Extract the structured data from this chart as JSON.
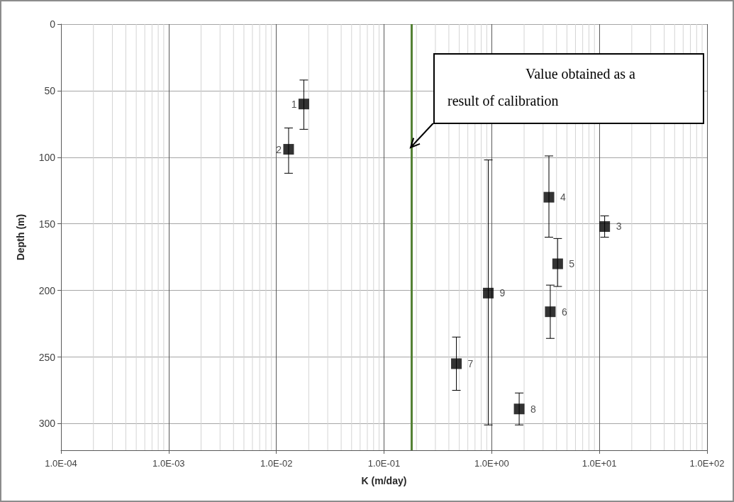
{
  "chart_data": {
    "type": "scatter",
    "xlabel": "K (m/day)",
    "ylabel": "Depth (m)",
    "x": [
      0.018,
      0.013,
      11.2,
      3.4,
      4.1,
      3.5,
      0.47,
      1.8,
      0.93
    ],
    "values": [
      60,
      94,
      152,
      130,
      180,
      216,
      255,
      289,
      202
    ],
    "errors": [
      [
        42,
        79
      ],
      [
        78,
        112
      ],
      [
        144,
        160
      ],
      [
        99,
        160
      ],
      [
        161,
        197
      ],
      [
        196,
        236
      ],
      [
        235,
        275
      ],
      [
        277,
        301
      ],
      [
        102,
        301
      ]
    ],
    "color": "#000000",
    "marker": "square",
    "log": "x",
    "grid": true,
    "xlim": [
      0.0001,
      100
    ],
    "xticks": [
      {
        "value": 0.0001,
        "label": "1.0E-04"
      },
      {
        "value": 0.001,
        "label": "1.0E-03"
      },
      {
        "value": 0.01,
        "label": "1.0E-02"
      },
      {
        "value": 0.1,
        "label": "1.0E-01"
      },
      {
        "value": 1,
        "label": "1.0E+00"
      },
      {
        "value": 10,
        "label": "1.0E+01"
      },
      {
        "value": 100,
        "label": "1.0E+02"
      }
    ],
    "ylim": [
      320,
      0
    ],
    "yticks": [
      0,
      50,
      100,
      150,
      200,
      250,
      300
    ],
    "ref_lines": [
      {
        "axis": "x",
        "value": 0.18,
        "color": "#548235"
      }
    ],
    "annotations": [
      "Value obtained as a result of calibration",
      {
        "text": "1",
        "x": 0.018,
        "y": 60
      },
      {
        "text": "2",
        "x": 0.013,
        "y": 94
      },
      {
        "text": "3",
        "x": 11.2,
        "y": 152
      },
      {
        "text": "4",
        "x": 3.4,
        "y": 130
      },
      {
        "text": "5",
        "x": 4.1,
        "y": 180
      },
      {
        "text": "6",
        "x": 3.5,
        "y": 216
      },
      {
        "text": "7",
        "x": 0.47,
        "y": 255
      },
      {
        "text": "8",
        "x": 1.8,
        "y": 289
      },
      {
        "text": "9",
        "x": 0.93,
        "y": 202
      }
    ]
  }
}
